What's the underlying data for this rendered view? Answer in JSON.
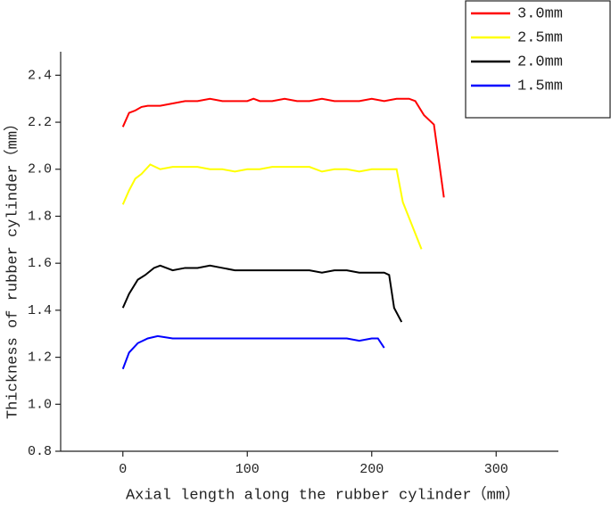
{
  "chart_data": {
    "type": "line",
    "xlabel": "Axial length along the rubber cylinder（mm）",
    "ylabel": "Thickness of rubber cylinder（mm）",
    "xlim": [
      -50,
      350
    ],
    "xticks": [
      0,
      100,
      200,
      300
    ],
    "ylim": [
      0.8,
      2.5
    ],
    "yticks": [
      0.8,
      {
        "value": 1,
        "label": "1.0"
      },
      1.2,
      1.4,
      1.6,
      1.8,
      {
        "value": 2,
        "label": "2.0"
      },
      2.2,
      2.4
    ],
    "legend": "upper right",
    "series": [
      {
        "name": "3.0mm",
        "color": "#ff0000",
        "x": [
          0,
          5,
          10,
          15,
          20,
          30,
          40,
          50,
          60,
          70,
          80,
          90,
          100,
          105,
          110,
          120,
          130,
          140,
          150,
          160,
          170,
          180,
          190,
          200,
          210,
          220,
          230,
          235,
          242,
          250,
          258
        ],
        "values": [
          2.18,
          2.24,
          2.25,
          2.265,
          2.27,
          2.27,
          2.28,
          2.29,
          2.29,
          2.3,
          2.29,
          2.29,
          2.29,
          2.3,
          2.29,
          2.29,
          2.3,
          2.29,
          2.29,
          2.3,
          2.29,
          2.29,
          2.29,
          2.3,
          2.29,
          2.3,
          2.3,
          2.29,
          2.23,
          2.19,
          1.88
        ]
      },
      {
        "name": "2.5mm",
        "color": "#ffff00",
        "x": [
          0,
          5,
          10,
          15,
          22,
          30,
          40,
          50,
          60,
          70,
          80,
          90,
          100,
          110,
          120,
          130,
          140,
          150,
          160,
          170,
          180,
          190,
          200,
          210,
          220,
          225,
          240
        ],
        "values": [
          1.85,
          1.91,
          1.96,
          1.98,
          2.02,
          2.0,
          2.01,
          2.01,
          2.01,
          2.0,
          2.0,
          1.99,
          2.0,
          2.0,
          2.01,
          2.01,
          2.01,
          2.01,
          1.99,
          2.0,
          2.0,
          1.99,
          2.0,
          2.0,
          2.0,
          1.86,
          1.66
        ]
      },
      {
        "name": "2.0mm",
        "color": "#000000",
        "x": [
          0,
          5,
          12,
          18,
          25,
          30,
          40,
          50,
          60,
          70,
          80,
          90,
          100,
          110,
          120,
          130,
          140,
          150,
          160,
          170,
          180,
          190,
          200,
          210,
          214,
          218,
          224
        ],
        "values": [
          1.41,
          1.47,
          1.53,
          1.55,
          1.58,
          1.59,
          1.57,
          1.58,
          1.58,
          1.59,
          1.58,
          1.57,
          1.57,
          1.57,
          1.57,
          1.57,
          1.57,
          1.57,
          1.56,
          1.57,
          1.57,
          1.56,
          1.56,
          1.56,
          1.55,
          1.41,
          1.35
        ]
      },
      {
        "name": "1.5mm",
        "color": "#0000ff",
        "x": [
          0,
          5,
          12,
          20,
          28,
          40,
          50,
          60,
          70,
          80,
          90,
          100,
          110,
          120,
          130,
          140,
          150,
          160,
          170,
          180,
          190,
          200,
          205,
          210
        ],
        "values": [
          1.15,
          1.22,
          1.26,
          1.28,
          1.29,
          1.28,
          1.28,
          1.28,
          1.28,
          1.28,
          1.28,
          1.28,
          1.28,
          1.28,
          1.28,
          1.28,
          1.28,
          1.28,
          1.28,
          1.28,
          1.27,
          1.28,
          1.28,
          1.24
        ]
      }
    ]
  }
}
